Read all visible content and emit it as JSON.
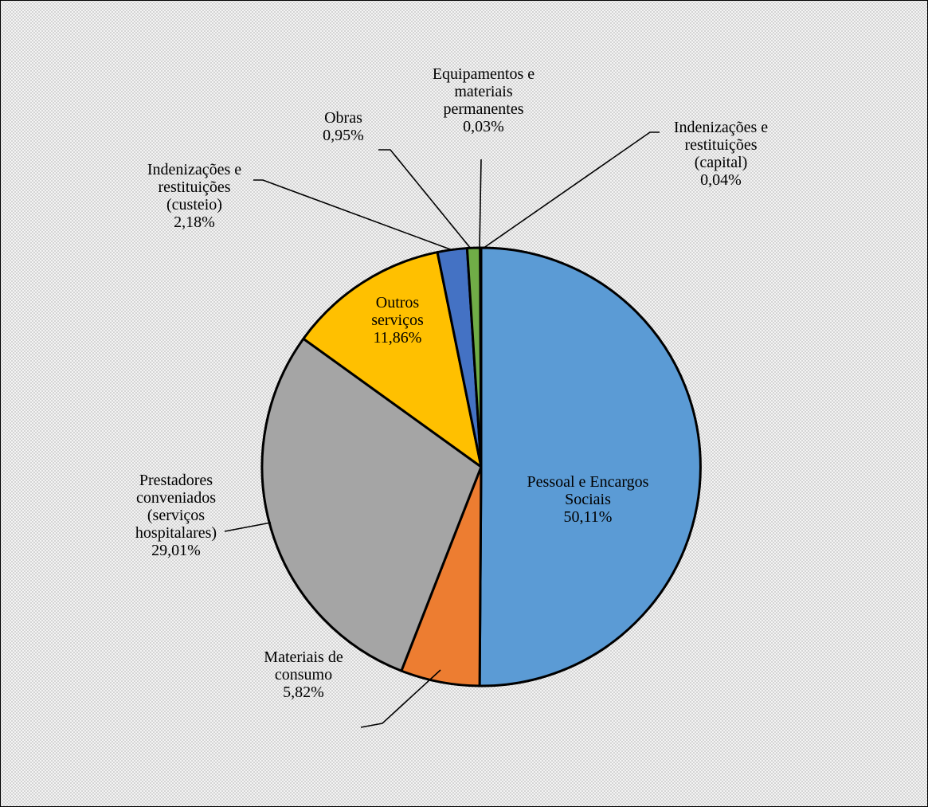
{
  "chart_data": {
    "type": "pie",
    "start_angle_deg": 0,
    "direction": "clockwise",
    "slices": [
      {
        "name": "Pessoal e Encargos Sociais",
        "label_lines": [
          "Pessoal e Encargos",
          "Sociais"
        ],
        "value": 50.11,
        "value_label": "50,11%",
        "color": "#5b9bd5"
      },
      {
        "name": "Materiais de consumo",
        "label_lines": [
          "Materiais de",
          "consumo"
        ],
        "value": 5.82,
        "value_label": "5,82%",
        "color": "#ed7d31"
      },
      {
        "name": "Prestadores conveniados (serviços hospitalares)",
        "label_lines": [
          "Prestadores",
          "conveniados",
          "(serviços",
          "hospitalares)"
        ],
        "value": 29.01,
        "value_label": "29,01%",
        "color": "#a5a5a5"
      },
      {
        "name": "Outros serviços",
        "label_lines": [
          "Outros",
          "serviços"
        ],
        "value": 11.86,
        "value_label": "11,86%",
        "color": "#ffc000"
      },
      {
        "name": "Indenizações e restituições (custeio)",
        "label_lines": [
          "Indenizações e",
          "restituições",
          "(custeio)"
        ],
        "value": 2.18,
        "value_label": "2,18%",
        "color": "#4472c4"
      },
      {
        "name": "Obras",
        "label_lines": [
          "Obras"
        ],
        "value": 0.95,
        "value_label": "0,95%",
        "color": "#70ad47"
      },
      {
        "name": "Equipamentos e materiais permanentes",
        "label_lines": [
          "Equipamentos e",
          "materiais",
          "permanentes"
        ],
        "value": 0.03,
        "value_label": "0,03%",
        "color": "#264478"
      },
      {
        "name": "Indenizações e restituições (capital)",
        "label_lines": [
          "Indenizações e",
          "restituições",
          "(capital)"
        ],
        "value": 0.04,
        "value_label": "0,04%",
        "color": "#9e480e"
      }
    ]
  }
}
